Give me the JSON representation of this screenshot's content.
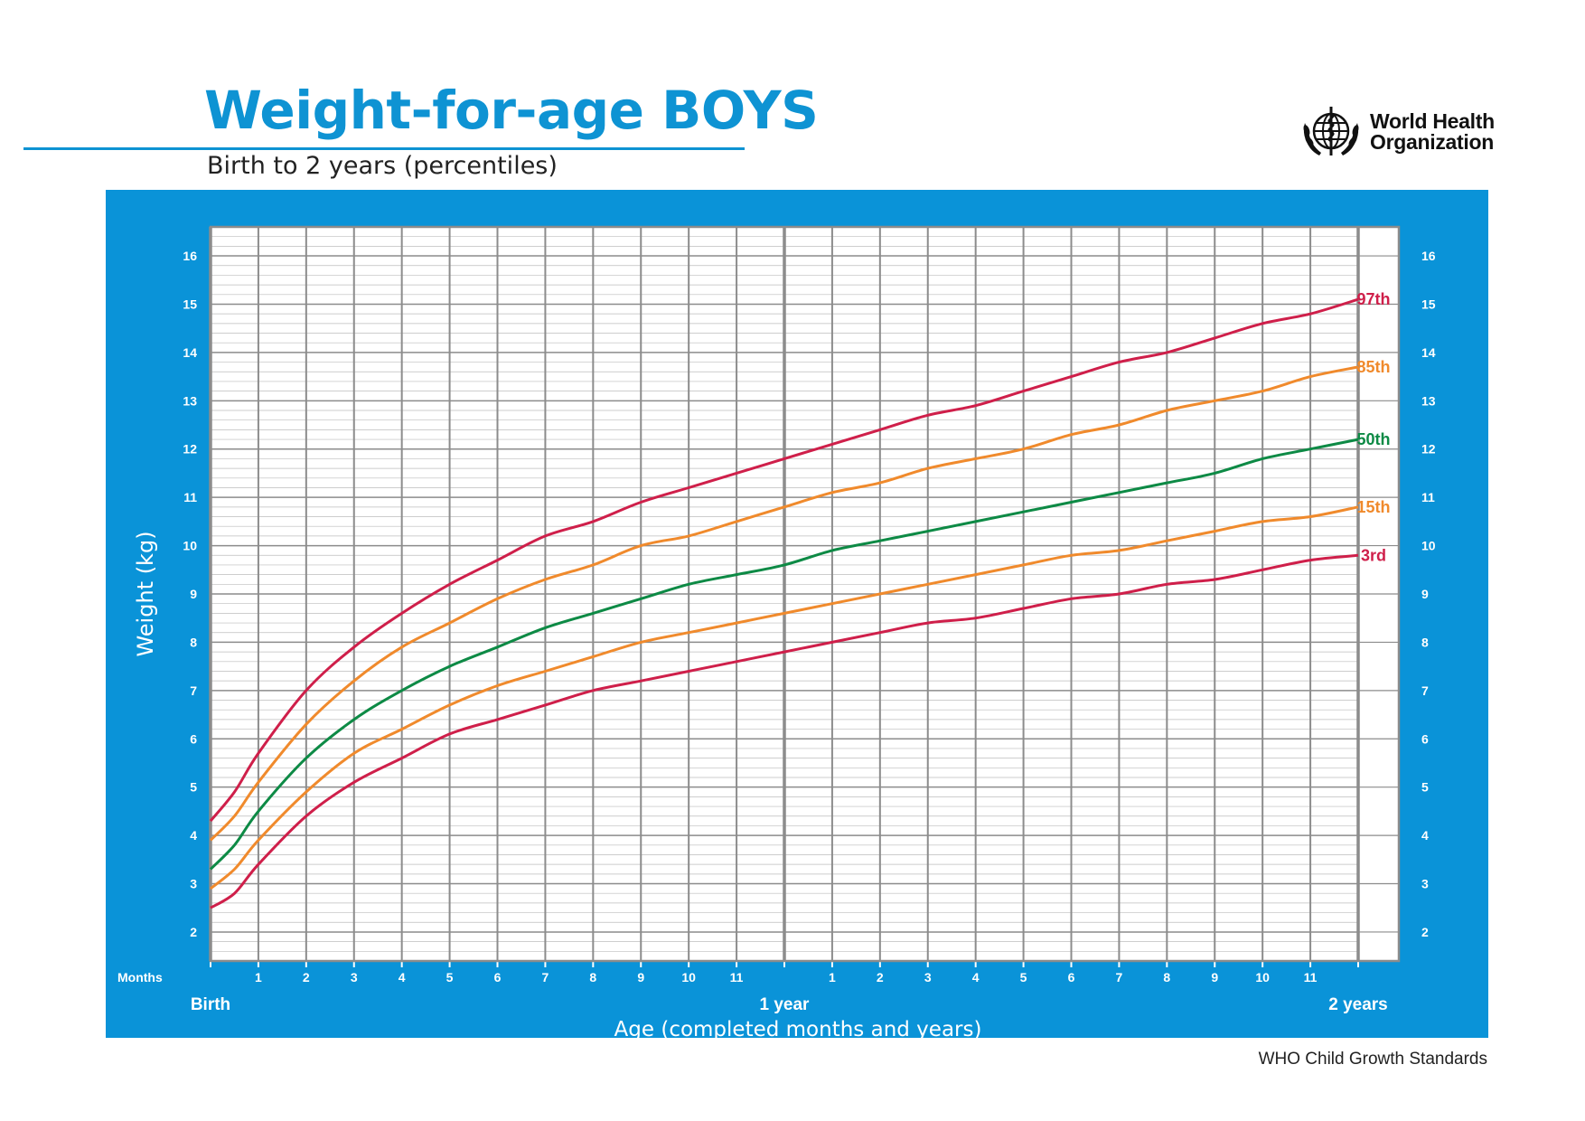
{
  "header": {
    "title": "Weight-for-age BOYS",
    "subtitle": "Birth to 2 years (percentiles)",
    "org_line1": "World Health",
    "org_line2": "Organization"
  },
  "footer": {
    "text": "WHO Child Growth Standards"
  },
  "colors": {
    "brand_blue": "#0e93d3",
    "panel_blue": "#0a93d8",
    "red": "#cf1f4a",
    "orange": "#f08a2c",
    "green": "#0d8a45",
    "grid": "#8c8c8c"
  },
  "chart_data": {
    "type": "line",
    "ylabel": "Weight (kg)",
    "xlabel": "Age (completed months and years)",
    "x_unit_label": "Months",
    "xlim": [
      0,
      24
    ],
    "ylim": [
      1.4,
      16.6
    ],
    "y_ticks": [
      2,
      3,
      4,
      5,
      6,
      7,
      8,
      9,
      10,
      11,
      12,
      13,
      14,
      15,
      16
    ],
    "x_month_ticks": [
      {
        "x": 1,
        "label": "1"
      },
      {
        "x": 2,
        "label": "2"
      },
      {
        "x": 3,
        "label": "3"
      },
      {
        "x": 4,
        "label": "4"
      },
      {
        "x": 5,
        "label": "5"
      },
      {
        "x": 6,
        "label": "6"
      },
      {
        "x": 7,
        "label": "7"
      },
      {
        "x": 8,
        "label": "8"
      },
      {
        "x": 9,
        "label": "9"
      },
      {
        "x": 10,
        "label": "10"
      },
      {
        "x": 11,
        "label": "11"
      },
      {
        "x": 13,
        "label": "1"
      },
      {
        "x": 14,
        "label": "2"
      },
      {
        "x": 15,
        "label": "3"
      },
      {
        "x": 16,
        "label": "4"
      },
      {
        "x": 17,
        "label": "5"
      },
      {
        "x": 18,
        "label": "6"
      },
      {
        "x": 19,
        "label": "7"
      },
      {
        "x": 20,
        "label": "8"
      },
      {
        "x": 21,
        "label": "9"
      },
      {
        "x": 22,
        "label": "10"
      },
      {
        "x": 23,
        "label": "11"
      }
    ],
    "x_year_ticks": [
      {
        "x": 0,
        "label": "Birth"
      },
      {
        "x": 12,
        "label": "1 year"
      },
      {
        "x": 24,
        "label": "2 years"
      }
    ],
    "grid": true,
    "minor_grid_step_kg": 0.2,
    "x": [
      0,
      0.5,
      1,
      2,
      3,
      4,
      5,
      6,
      7,
      8,
      9,
      10,
      11,
      12,
      13,
      14,
      15,
      16,
      17,
      18,
      19,
      20,
      21,
      22,
      23,
      24
    ],
    "series": [
      {
        "name": "97th",
        "color": "#cf1f4a",
        "values": [
          4.3,
          4.9,
          5.7,
          7.0,
          7.9,
          8.6,
          9.2,
          9.7,
          10.2,
          10.5,
          10.9,
          11.2,
          11.5,
          11.8,
          12.1,
          12.4,
          12.7,
          12.9,
          13.2,
          13.5,
          13.8,
          14.0,
          14.3,
          14.6,
          14.8,
          15.1
        ]
      },
      {
        "name": "85th",
        "color": "#f08a2c",
        "values": [
          3.9,
          4.4,
          5.1,
          6.3,
          7.2,
          7.9,
          8.4,
          8.9,
          9.3,
          9.6,
          10.0,
          10.2,
          10.5,
          10.8,
          11.1,
          11.3,
          11.6,
          11.8,
          12.0,
          12.3,
          12.5,
          12.8,
          13.0,
          13.2,
          13.5,
          13.7
        ]
      },
      {
        "name": "50th",
        "color": "#0d8a45",
        "values": [
          3.3,
          3.8,
          4.5,
          5.6,
          6.4,
          7.0,
          7.5,
          7.9,
          8.3,
          8.6,
          8.9,
          9.2,
          9.4,
          9.6,
          9.9,
          10.1,
          10.3,
          10.5,
          10.7,
          10.9,
          11.1,
          11.3,
          11.5,
          11.8,
          12.0,
          12.2
        ]
      },
      {
        "name": "15th",
        "color": "#f08a2c",
        "values": [
          2.9,
          3.3,
          3.9,
          4.9,
          5.7,
          6.2,
          6.7,
          7.1,
          7.4,
          7.7,
          8.0,
          8.2,
          8.4,
          8.6,
          8.8,
          9.0,
          9.2,
          9.4,
          9.6,
          9.8,
          9.9,
          10.1,
          10.3,
          10.5,
          10.6,
          10.8
        ]
      },
      {
        "name": "3rd",
        "color": "#cf1f4a",
        "values": [
          2.5,
          2.8,
          3.4,
          4.4,
          5.1,
          5.6,
          6.1,
          6.4,
          6.7,
          7.0,
          7.2,
          7.4,
          7.6,
          7.8,
          8.0,
          8.2,
          8.4,
          8.5,
          8.7,
          8.9,
          9.0,
          9.2,
          9.3,
          9.5,
          9.7,
          9.8
        ]
      }
    ]
  }
}
